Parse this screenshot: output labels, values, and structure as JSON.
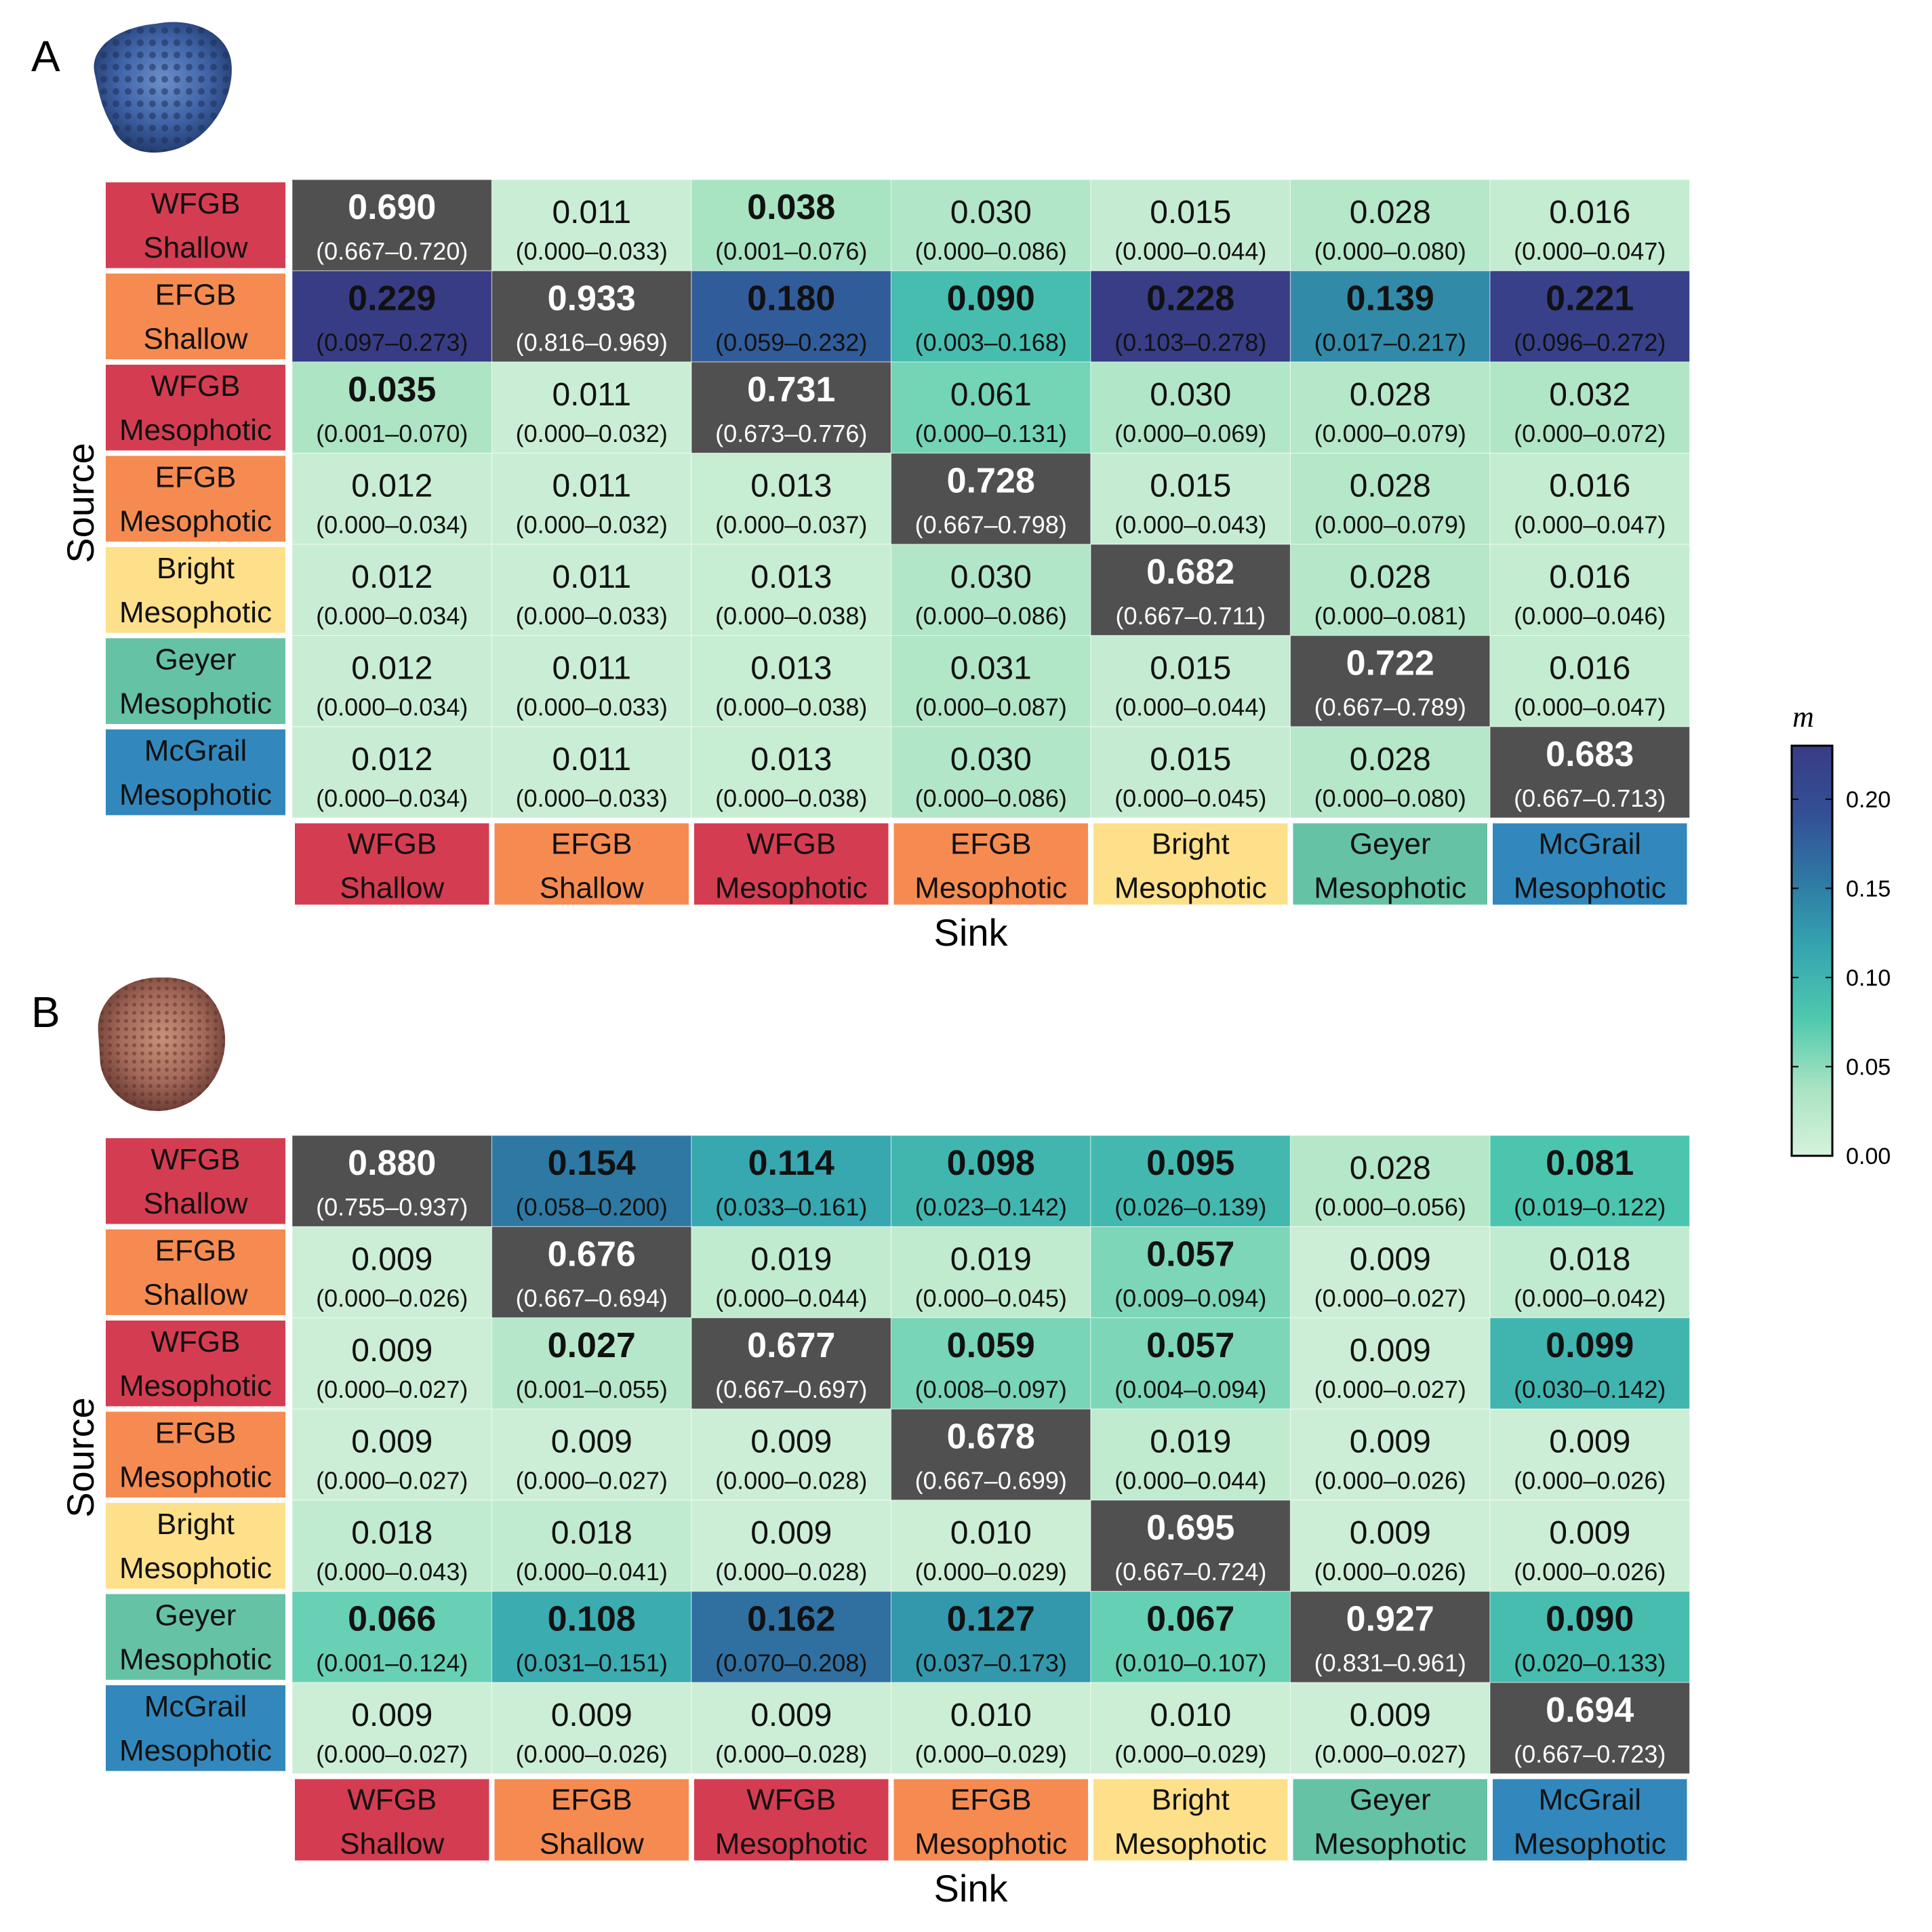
{
  "figure": {
    "colorbar": {
      "title": "m",
      "min": 0,
      "max": 0.23,
      "ticks": [
        "0.00",
        "0.05",
        "0.10",
        "0.15",
        "0.20"
      ],
      "tick_values": [
        0,
        0.05,
        0.1,
        0.15,
        0.2
      ],
      "colors": [
        "#d7f2dc",
        "#a8e3c2",
        "#4fc9ae",
        "#36a6b0",
        "#2e7aa4",
        "#334f95",
        "#383c85"
      ],
      "diagonal_color": "#505050"
    },
    "categories": [
      {
        "line1": "WFGB",
        "line2": "Shallow",
        "color": "#d43d51"
      },
      {
        "line1": "EFGB",
        "line2": "Shallow",
        "color": "#f68b52"
      },
      {
        "line1": "WFGB",
        "line2": "Mesophotic",
        "color": "#d43d51"
      },
      {
        "line1": "EFGB",
        "line2": "Mesophotic",
        "color": "#f68b52"
      },
      {
        "line1": "Bright",
        "line2": "Mesophotic",
        "color": "#fee08b"
      },
      {
        "line1": "Geyer",
        "line2": "Mesophotic",
        "color": "#66c2a5"
      },
      {
        "line1": "McGrail",
        "line2": "Mesophotic",
        "color": "#3288bd"
      }
    ]
  },
  "chart_data": [
    {
      "type": "heatmap",
      "panel": "A",
      "xlabel": "Sink",
      "ylabel": "Source",
      "rows": [
        [
          [
            "0.690",
            "(0.667–0.720)",
            1
          ],
          [
            "0.011",
            "(0.000–0.033)",
            0
          ],
          [
            "0.038",
            "(0.001–0.076)",
            1
          ],
          [
            "0.030",
            "(0.000–0.086)",
            0
          ],
          [
            "0.015",
            "(0.000–0.044)",
            0
          ],
          [
            "0.028",
            "(0.000–0.080)",
            0
          ],
          [
            "0.016",
            "(0.000–0.047)",
            0
          ]
        ],
        [
          [
            "0.229",
            "(0.097–0.273)",
            1
          ],
          [
            "0.933",
            "(0.816–0.969)",
            1
          ],
          [
            "0.180",
            "(0.059–0.232)",
            1
          ],
          [
            "0.090",
            "(0.003–0.168)",
            1
          ],
          [
            "0.228",
            "(0.103–0.278)",
            1
          ],
          [
            "0.139",
            "(0.017–0.217)",
            1
          ],
          [
            "0.221",
            "(0.096–0.272)",
            1
          ]
        ],
        [
          [
            "0.035",
            "(0.001–0.070)",
            1
          ],
          [
            "0.011",
            "(0.000–0.032)",
            0
          ],
          [
            "0.731",
            "(0.673–0.776)",
            1
          ],
          [
            "0.061",
            "(0.000–0.131)",
            0
          ],
          [
            "0.030",
            "(0.000–0.069)",
            0
          ],
          [
            "0.028",
            "(0.000–0.079)",
            0
          ],
          [
            "0.032",
            "(0.000–0.072)",
            0
          ]
        ],
        [
          [
            "0.012",
            "(0.000–0.034)",
            0
          ],
          [
            "0.011",
            "(0.000–0.032)",
            0
          ],
          [
            "0.013",
            "(0.000–0.037)",
            0
          ],
          [
            "0.728",
            "(0.667–0.798)",
            1
          ],
          [
            "0.015",
            "(0.000–0.043)",
            0
          ],
          [
            "0.028",
            "(0.000–0.079)",
            0
          ],
          [
            "0.016",
            "(0.000–0.047)",
            0
          ]
        ],
        [
          [
            "0.012",
            "(0.000–0.034)",
            0
          ],
          [
            "0.011",
            "(0.000–0.033)",
            0
          ],
          [
            "0.013",
            "(0.000–0.038)",
            0
          ],
          [
            "0.030",
            "(0.000–0.086)",
            0
          ],
          [
            "0.682",
            "(0.667–0.711)",
            1
          ],
          [
            "0.028",
            "(0.000–0.081)",
            0
          ],
          [
            "0.016",
            "(0.000–0.046)",
            0
          ]
        ],
        [
          [
            "0.012",
            "(0.000–0.034)",
            0
          ],
          [
            "0.011",
            "(0.000–0.033)",
            0
          ],
          [
            "0.013",
            "(0.000–0.038)",
            0
          ],
          [
            "0.031",
            "(0.000–0.087)",
            0
          ],
          [
            "0.015",
            "(0.000–0.044)",
            0
          ],
          [
            "0.722",
            "(0.667–0.789)",
            1
          ],
          [
            "0.016",
            "(0.000–0.047)",
            0
          ]
        ],
        [
          [
            "0.012",
            "(0.000–0.034)",
            0
          ],
          [
            "0.011",
            "(0.000–0.033)",
            0
          ],
          [
            "0.013",
            "(0.000–0.038)",
            0
          ],
          [
            "0.030",
            "(0.000–0.086)",
            0
          ],
          [
            "0.015",
            "(0.000–0.045)",
            0
          ],
          [
            "0.028",
            "(0.000–0.080)",
            0
          ],
          [
            "0.683",
            "(0.667–0.713)",
            1
          ]
        ]
      ]
    },
    {
      "type": "heatmap",
      "panel": "B",
      "xlabel": "Sink",
      "ylabel": "Source",
      "rows": [
        [
          [
            "0.880",
            "(0.755–0.937)",
            1
          ],
          [
            "0.154",
            "(0.058–0.200)",
            1
          ],
          [
            "0.114",
            "(0.033–0.161)",
            1
          ],
          [
            "0.098",
            "(0.023–0.142)",
            1
          ],
          [
            "0.095",
            "(0.026–0.139)",
            1
          ],
          [
            "0.028",
            "(0.000–0.056)",
            0
          ],
          [
            "0.081",
            "(0.019–0.122)",
            1
          ]
        ],
        [
          [
            "0.009",
            "(0.000–0.026)",
            0
          ],
          [
            "0.676",
            "(0.667–0.694)",
            1
          ],
          [
            "0.019",
            "(0.000–0.044)",
            0
          ],
          [
            "0.019",
            "(0.000–0.045)",
            0
          ],
          [
            "0.057",
            "(0.009–0.094)",
            1
          ],
          [
            "0.009",
            "(0.000–0.027)",
            0
          ],
          [
            "0.018",
            "(0.000–0.042)",
            0
          ]
        ],
        [
          [
            "0.009",
            "(0.000–0.027)",
            0
          ],
          [
            "0.027",
            "(0.001–0.055)",
            1
          ],
          [
            "0.677",
            "(0.667–0.697)",
            1
          ],
          [
            "0.059",
            "(0.008–0.097)",
            1
          ],
          [
            "0.057",
            "(0.004–0.094)",
            1
          ],
          [
            "0.009",
            "(0.000–0.027)",
            0
          ],
          [
            "0.099",
            "(0.030–0.142)",
            1
          ]
        ],
        [
          [
            "0.009",
            "(0.000–0.027)",
            0
          ],
          [
            "0.009",
            "(0.000–0.027)",
            0
          ],
          [
            "0.009",
            "(0.000–0.028)",
            0
          ],
          [
            "0.678",
            "(0.667–0.699)",
            1
          ],
          [
            "0.019",
            "(0.000–0.044)",
            0
          ],
          [
            "0.009",
            "(0.000–0.026)",
            0
          ],
          [
            "0.009",
            "(0.000–0.026)",
            0
          ]
        ],
        [
          [
            "0.018",
            "(0.000–0.043)",
            0
          ],
          [
            "0.018",
            "(0.000–0.041)",
            0
          ],
          [
            "0.009",
            "(0.000–0.028)",
            0
          ],
          [
            "0.010",
            "(0.000–0.029)",
            0
          ],
          [
            "0.695",
            "(0.667–0.724)",
            1
          ],
          [
            "0.009",
            "(0.000–0.026)",
            0
          ],
          [
            "0.009",
            "(0.000–0.026)",
            0
          ]
        ],
        [
          [
            "0.066",
            "(0.001–0.124)",
            1
          ],
          [
            "0.108",
            "(0.031–0.151)",
            1
          ],
          [
            "0.162",
            "(0.070–0.208)",
            1
          ],
          [
            "0.127",
            "(0.037–0.173)",
            1
          ],
          [
            "0.067",
            "(0.010–0.107)",
            1
          ],
          [
            "0.927",
            "(0.831–0.961)",
            1
          ],
          [
            "0.090",
            "(0.020–0.133)",
            1
          ]
        ],
        [
          [
            "0.009",
            "(0.000–0.027)",
            0
          ],
          [
            "0.009",
            "(0.000–0.026)",
            0
          ],
          [
            "0.009",
            "(0.000–0.028)",
            0
          ],
          [
            "0.010",
            "(0.000–0.029)",
            0
          ],
          [
            "0.010",
            "(0.000–0.029)",
            0
          ],
          [
            "0.009",
            "(0.000–0.027)",
            0
          ],
          [
            "0.694",
            "(0.667–0.723)",
            1
          ]
        ]
      ]
    }
  ]
}
